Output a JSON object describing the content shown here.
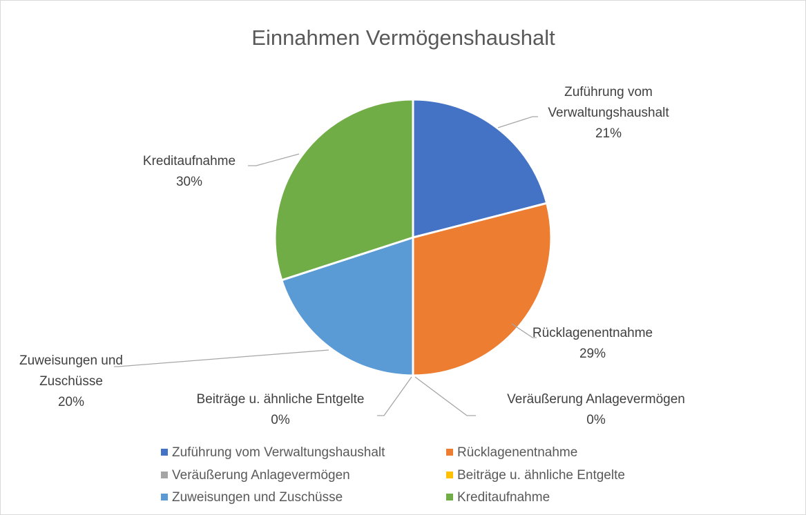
{
  "chart_data": {
    "type": "pie",
    "title": "Einnahmen Vermögenshaushalt",
    "categories": [
      "Zuführung vom Verwaltungshaushalt",
      "Rücklagenentnahme",
      "Veräußerung Anlagevermögen",
      "Beiträge u. ähnliche Entgelte",
      "Zuweisungen und Zuschüsse",
      "Kreditaufnahme"
    ],
    "values": [
      21,
      29,
      0,
      0,
      20,
      30
    ],
    "value_labels": [
      "21%",
      "29%",
      "0%",
      "0%",
      "20%",
      "30%"
    ],
    "colors": [
      "#4472c4",
      "#ed7d31",
      "#a5a5a5",
      "#ffc000",
      "#5b9bd5",
      "#70ad47"
    ],
    "legend": "bottom"
  }
}
